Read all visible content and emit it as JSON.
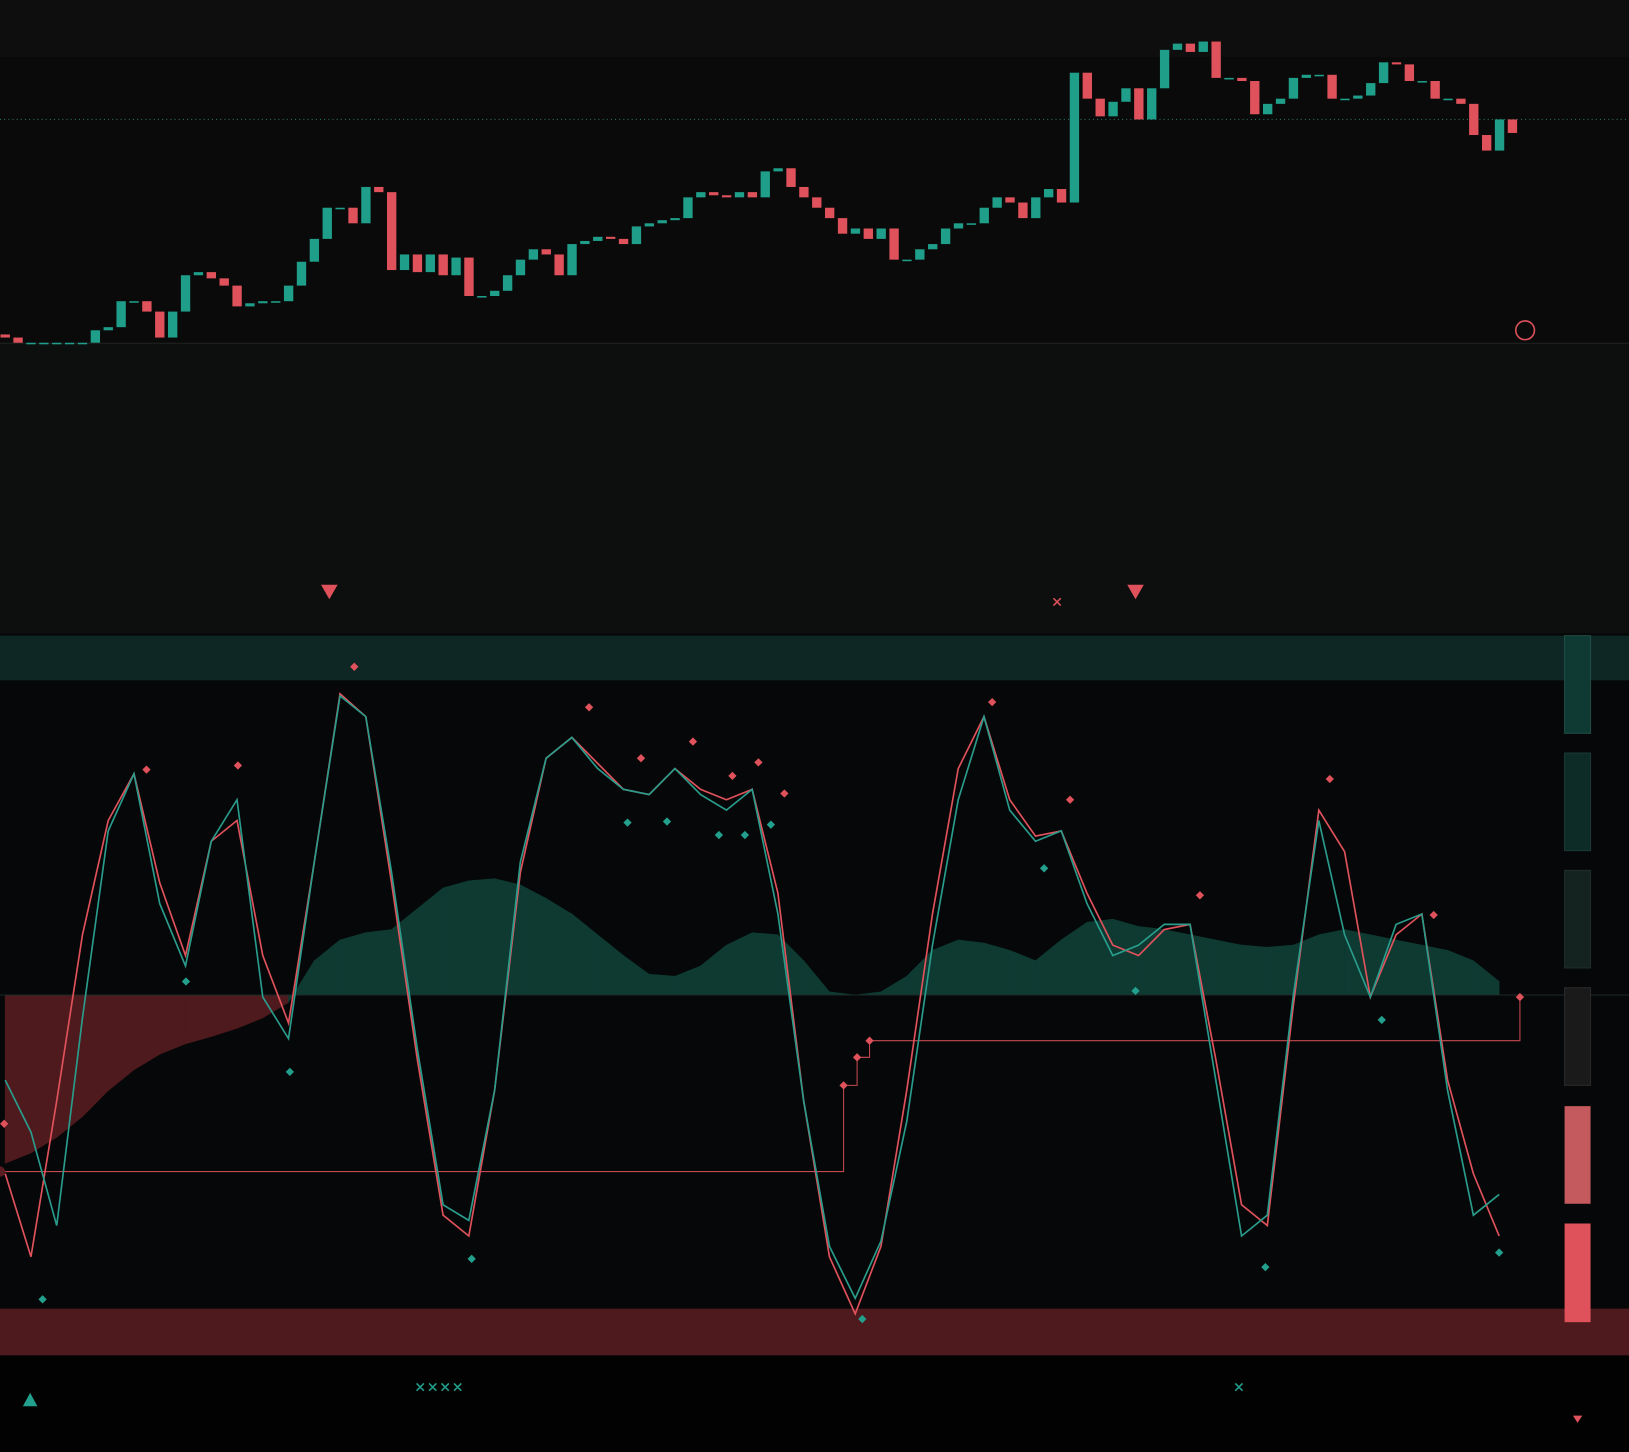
{
  "chart_data": [
    {
      "type": "candlestick",
      "up_color": "#1f9e89",
      "down_color": "#e0525b",
      "ylim": [
        0,
        330
      ],
      "open": [
        8,
        5,
        0,
        0,
        0,
        0,
        0,
        0,
        12,
        15,
        40,
        40,
        30,
        5,
        30,
        65,
        68,
        62,
        55,
        35,
        38,
        40,
        40,
        55,
        78,
        100,
        130,
        130,
        115,
        150,
        145,
        70,
        85,
        68,
        85,
        65,
        82,
        45,
        45,
        50,
        65,
        80,
        90,
        85,
        65,
        95,
        98,
        102,
        100,
        95,
        112,
        115,
        118,
        120,
        140,
        145,
        142,
        140,
        145,
        140,
        165,
        168,
        150,
        140,
        130,
        120,
        105,
        110,
        100,
        110,
        80,
        80,
        90,
        95,
        110,
        115,
        115,
        130,
        140,
        135,
        120,
        140,
        148,
        135,
        260,
        235,
        218,
        232,
        245,
        215,
        245,
        282,
        288,
        280,
        290,
        255,
        255,
        252,
        220,
        230,
        235,
        255,
        258,
        258,
        235,
        235,
        238,
        250,
        270,
        268,
        252,
        252,
        235,
        235,
        230,
        200,
        185,
        215
      ],
      "close": [
        5,
        0,
        0,
        0,
        0,
        0,
        0,
        12,
        15,
        40,
        40,
        30,
        5,
        30,
        65,
        68,
        62,
        55,
        35,
        38,
        40,
        40,
        55,
        78,
        100,
        130,
        130,
        115,
        150,
        145,
        70,
        85,
        68,
        85,
        65,
        82,
        45,
        45,
        50,
        65,
        80,
        90,
        85,
        65,
        95,
        98,
        102,
        100,
        95,
        112,
        115,
        118,
        120,
        140,
        145,
        142,
        140,
        145,
        140,
        165,
        168,
        150,
        140,
        130,
        120,
        105,
        110,
        100,
        110,
        80,
        80,
        90,
        95,
        110,
        115,
        115,
        130,
        140,
        135,
        120,
        140,
        148,
        135,
        260,
        235,
        218,
        232,
        245,
        215,
        245,
        282,
        288,
        280,
        290,
        255,
        255,
        252,
        220,
        230,
        235,
        255,
        258,
        258,
        235,
        235,
        238,
        250,
        270,
        268,
        252,
        252,
        235,
        235,
        230,
        200,
        185,
        215,
        202
      ]
    },
    {
      "type": "line",
      "xlim": [
        0,
        116
      ],
      "ylim": [
        0,
        693
      ],
      "x": [
        0,
        2,
        4,
        6,
        8,
        10,
        12,
        14,
        16,
        18,
        20,
        22,
        24,
        26,
        28,
        30,
        32,
        34,
        36,
        38,
        40,
        42,
        44,
        46,
        48,
        50,
        52,
        54,
        56,
        58,
        60,
        62,
        64,
        66,
        68,
        70,
        72,
        74,
        76,
        78,
        80,
        82,
        84,
        86,
        88,
        90,
        92,
        94,
        96,
        98,
        100,
        102,
        104,
        106,
        108,
        110,
        112,
        114,
        116
      ],
      "series": [
        {
          "color": "#e0525b",
          "values": [
            175,
            95,
            245,
            405,
            515,
            560,
            455,
            385,
            495,
            515,
            385,
            320,
            475,
            637,
            615,
            455,
            285,
            135,
            115,
            255,
            465,
            575,
            595,
            570,
            545,
            540,
            565,
            545,
            535,
            545,
            445,
            245,
            95,
            40,
            105,
            255,
            425,
            565,
            615,
            535,
            500,
            505,
            445,
            395,
            385,
            410,
            415,
            285,
            145,
            125,
            335,
            525,
            485,
            345,
            405,
            425,
            265,
            175,
            115
          ]
        },
        {
          "color": "#2a9c8c",
          "values": [
            265,
            215,
            125,
            325,
            505,
            560,
            435,
            375,
            495,
            535,
            345,
            305,
            475,
            635,
            615,
            465,
            295,
            145,
            130,
            255,
            475,
            575,
            595,
            565,
            545,
            540,
            565,
            540,
            525,
            545,
            425,
            245,
            105,
            55,
            110,
            225,
            395,
            535,
            615,
            525,
            495,
            505,
            435,
            385,
            395,
            415,
            415,
            265,
            115,
            135,
            345,
            515,
            405,
            345,
            415,
            425,
            255,
            135,
            155
          ]
        }
      ]
    },
    {
      "type": "area",
      "xlim": [
        0,
        116
      ],
      "ylim": [
        0,
        693
      ],
      "baseline": 347,
      "color": "#0e3a32",
      "negative_color": "#4e1a1d",
      "x": [
        0,
        2,
        4,
        6,
        8,
        10,
        12,
        14,
        16,
        18,
        20,
        22,
        24,
        26,
        28,
        30,
        32,
        34,
        36,
        38,
        40,
        42,
        44,
        46,
        48,
        50,
        52,
        54,
        56,
        58,
        60,
        62,
        64,
        66,
        68,
        70,
        72,
        74,
        76,
        78,
        80,
        82,
        84,
        86,
        88,
        90,
        92,
        94,
        96,
        98,
        100,
        102,
        104,
        106,
        108,
        110,
        112,
        114,
        116
      ],
      "values": [
        185,
        195,
        210,
        230,
        255,
        275,
        290,
        300,
        307,
        315,
        325,
        340,
        380,
        400,
        407,
        410,
        430,
        450,
        457,
        459,
        453,
        440,
        425,
        405,
        385,
        367,
        365,
        375,
        395,
        407,
        405,
        380,
        350,
        347,
        350,
        365,
        390,
        400,
        397,
        390,
        380,
        400,
        417,
        420,
        413,
        410,
        405,
        400,
        395,
        393,
        395,
        405,
        410,
        405,
        400,
        395,
        390,
        380,
        360
      ]
    }
  ]
}
